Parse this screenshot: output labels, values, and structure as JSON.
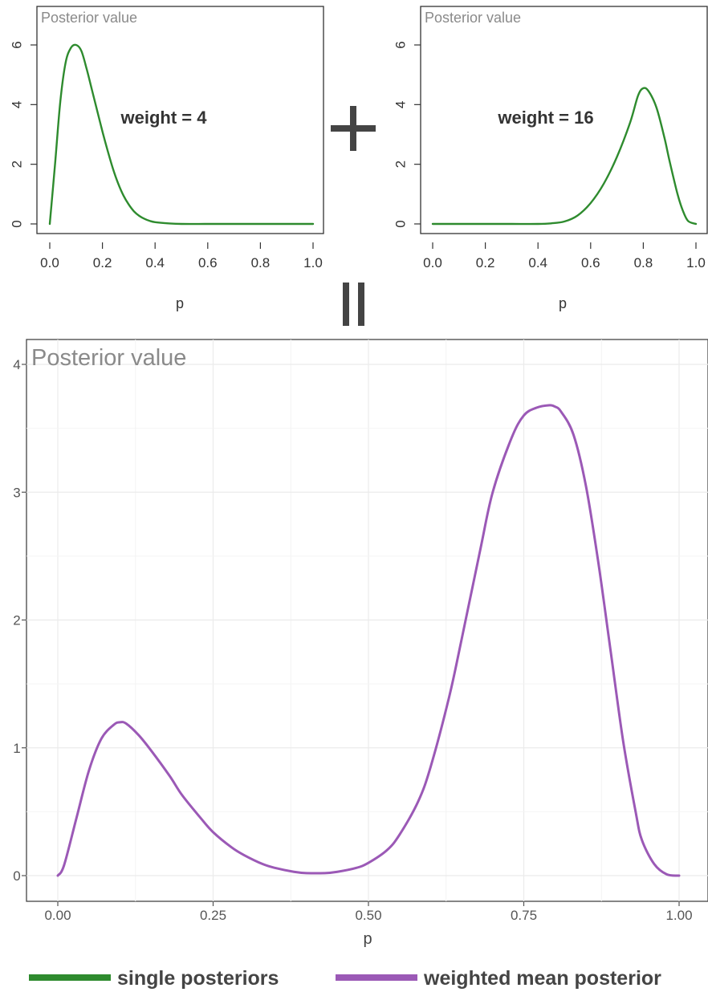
{
  "chart_data": [
    {
      "type": "line",
      "title": "Posterior value",
      "xlabel": "p",
      "ylabel": "",
      "xlim": [
        0,
        1
      ],
      "ylim": [
        0,
        6
      ],
      "xticks": [
        "0.0",
        "0.2",
        "0.4",
        "0.6",
        "0.8",
        "1.0"
      ],
      "yticks": [
        "0",
        "2",
        "4",
        "6"
      ],
      "annotation": "weight = 4",
      "grid": false,
      "series": [
        {
          "color": "#2e8b2e",
          "x": [
            0,
            0.02,
            0.04,
            0.06,
            0.08,
            0.1,
            0.12,
            0.14,
            0.16,
            0.18,
            0.2,
            0.22,
            0.24,
            0.26,
            0.28,
            0.3,
            0.32,
            0.34,
            0.36,
            0.38,
            0.4,
            0.45,
            0.5,
            0.6,
            0.7,
            0.8,
            0.9,
            1.0
          ],
          "y": [
            0,
            2.0,
            4.1,
            5.4,
            5.9,
            6.0,
            5.8,
            5.2,
            4.5,
            3.8,
            3.1,
            2.45,
            1.85,
            1.35,
            0.95,
            0.65,
            0.42,
            0.27,
            0.17,
            0.1,
            0.06,
            0.02,
            0.0,
            0.0,
            0.0,
            0.0,
            0.0,
            0.0
          ]
        }
      ]
    },
    {
      "type": "line",
      "title": "Posterior value",
      "xlabel": "p",
      "ylabel": "",
      "xlim": [
        0,
        1
      ],
      "ylim": [
        0,
        6
      ],
      "xticks": [
        "0.0",
        "0.2",
        "0.4",
        "0.6",
        "0.8",
        "1.0"
      ],
      "yticks": [
        "0",
        "2",
        "4",
        "6"
      ],
      "annotation": "weight = 16",
      "grid": false,
      "series": [
        {
          "color": "#2e8b2e",
          "x": [
            0,
            0.1,
            0.2,
            0.3,
            0.4,
            0.45,
            0.5,
            0.55,
            0.6,
            0.65,
            0.7,
            0.75,
            0.78,
            0.8,
            0.82,
            0.85,
            0.88,
            0.9,
            0.93,
            0.95,
            0.97,
            1.0
          ],
          "y": [
            0,
            0,
            0,
            0,
            0.0,
            0.02,
            0.08,
            0.28,
            0.7,
            1.35,
            2.25,
            3.4,
            4.3,
            4.55,
            4.45,
            3.9,
            2.9,
            2.1,
            1.0,
            0.45,
            0.1,
            0
          ]
        }
      ]
    },
    {
      "type": "line",
      "title": "Posterior value",
      "xlabel": "p",
      "ylabel": "",
      "xlim": [
        0,
        1
      ],
      "ylim": [
        0,
        4
      ],
      "xticks": [
        "0.00",
        "0.25",
        "0.50",
        "0.75",
        "1.00"
      ],
      "yticks": [
        "0",
        "1",
        "2",
        "3",
        "4"
      ],
      "grid": true,
      "series": [
        {
          "color": "#9b59b6",
          "x": [
            0,
            0.01,
            0.03,
            0.05,
            0.07,
            0.09,
            0.1,
            0.11,
            0.13,
            0.15,
            0.18,
            0.2,
            0.23,
            0.25,
            0.28,
            0.3,
            0.33,
            0.35,
            0.38,
            0.4,
            0.43,
            0.45,
            0.48,
            0.5,
            0.53,
            0.55,
            0.58,
            0.6,
            0.63,
            0.65,
            0.68,
            0.7,
            0.73,
            0.75,
            0.77,
            0.79,
            0.8,
            0.81,
            0.83,
            0.85,
            0.87,
            0.89,
            0.91,
            0.93,
            0.94,
            0.96,
            0.98,
            1.0
          ],
          "y": [
            0,
            0.08,
            0.45,
            0.82,
            1.07,
            1.18,
            1.2,
            1.19,
            1.1,
            0.98,
            0.78,
            0.63,
            0.45,
            0.34,
            0.22,
            0.16,
            0.09,
            0.06,
            0.03,
            0.02,
            0.02,
            0.03,
            0.06,
            0.1,
            0.2,
            0.32,
            0.58,
            0.85,
            1.4,
            1.85,
            2.55,
            3.0,
            3.42,
            3.6,
            3.66,
            3.68,
            3.67,
            3.63,
            3.45,
            3.05,
            2.45,
            1.75,
            1.05,
            0.5,
            0.28,
            0.09,
            0.01,
            0
          ]
        }
      ]
    }
  ],
  "operators": {
    "plus": "+",
    "equals": "||"
  },
  "legend": [
    {
      "label": "single posteriors",
      "color": "#2e8b2e"
    },
    {
      "label": "weighted mean posterior",
      "color": "#9b59b6"
    }
  ]
}
